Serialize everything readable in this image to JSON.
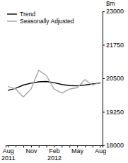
{
  "chart_data": {
    "type": "line",
    "y_label": "$m",
    "categories": [
      "Aug 2011",
      null,
      null,
      "Nov",
      null,
      null,
      "Feb 2012",
      null,
      null,
      "May",
      null,
      null,
      "Aug"
    ],
    "series": [
      {
        "name": "Trend",
        "color": "#000000",
        "values": [
          20050,
          20130,
          20250,
          20320,
          20370,
          20380,
          20340,
          20270,
          20230,
          20220,
          20250,
          20290,
          20330
        ]
      },
      {
        "name": "Seasonally Adjusted",
        "color": "#a6a6a6",
        "values": [
          20200,
          20100,
          19800,
          20100,
          20800,
          20600,
          20100,
          19950,
          20100,
          20150,
          20450,
          20250,
          20350
        ]
      }
    ],
    "ylim": [
      18000,
      23000
    ],
    "yticks": [
      18000,
      19250,
      20500,
      21750,
      23000
    ],
    "grid": false,
    "legend": "top-left"
  }
}
